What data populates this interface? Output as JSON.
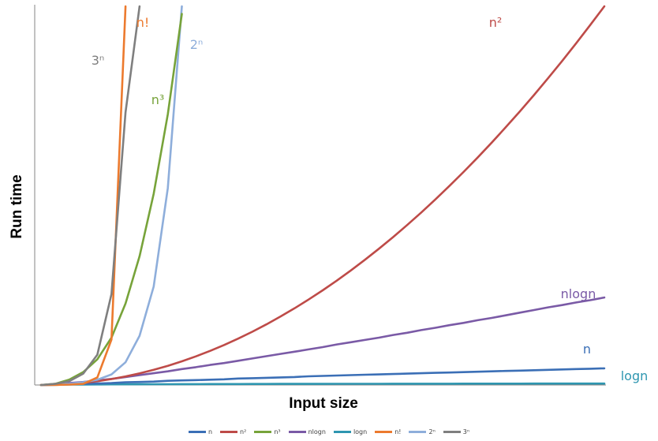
{
  "chart_data": {
    "type": "line",
    "title": "",
    "xlabel": "Input size",
    "ylabel": "Run time",
    "xlim": [
      0,
      40
    ],
    "ylim": [
      0,
      100
    ],
    "grid": false,
    "legend_position": "bottom",
    "x": [
      0,
      1,
      2,
      3,
      4,
      5,
      6,
      7,
      8,
      9,
      10,
      11,
      12,
      13,
      14,
      15,
      16,
      17,
      18,
      19,
      20,
      21,
      22,
      23,
      24,
      25,
      26,
      27,
      28,
      29,
      30,
      31,
      32,
      33,
      34,
      35,
      36,
      37,
      38,
      39,
      40
    ],
    "series": [
      {
        "name": "n",
        "label": "n",
        "color": "#3b6fb6",
        "values": [
          0,
          0.1,
          0.2,
          0.3,
          0.4,
          0.5,
          0.7,
          0.8,
          0.9,
          1.1,
          1.2,
          1.3,
          1.4,
          1.5,
          1.7,
          1.8,
          1.9,
          2.0,
          2.1,
          2.3,
          2.4,
          2.5,
          2.6,
          2.7,
          2.8,
          2.9,
          3.0,
          3.1,
          3.2,
          3.3,
          3.4,
          3.5,
          3.6,
          3.7,
          3.8,
          3.9,
          4.0,
          4.1,
          4.2,
          4.3,
          4.4
        ]
      },
      {
        "name": "n²",
        "label": "n²",
        "color": "#be4b48",
        "values": [
          0,
          0.06,
          0.25,
          0.56,
          1.0,
          1.56,
          2.25,
          3.06,
          4.0,
          5.06,
          6.25,
          7.56,
          9.0,
          10.56,
          12.25,
          14.06,
          16.0,
          18.06,
          20.25,
          22.56,
          25.0,
          27.56,
          30.25,
          33.06,
          36.0,
          39.06,
          42.25,
          45.56,
          49.0,
          52.56,
          56.25,
          60.06,
          64.0,
          68.06,
          72.25,
          76.56,
          81.0,
          85.56,
          90.25,
          95.06,
          100.0
        ]
      },
      {
        "name": "n³",
        "label": "n³",
        "color": "#77a33a",
        "values": [
          0,
          0.3,
          1.4,
          3.4,
          6.8,
          12.5,
          21.5,
          34.0,
          50.5,
          71.5,
          98.0,
          null,
          null,
          null,
          null,
          null,
          null,
          null,
          null,
          null,
          null,
          null,
          null,
          null,
          null,
          null,
          null,
          null,
          null,
          null,
          null,
          null,
          null,
          null,
          null,
          null,
          null,
          null,
          null,
          null,
          null
        ]
      },
      {
        "name": "nlogn",
        "label": "nlogn",
        "color": "#7a5aa6",
        "values": [
          0,
          0.2,
          0.5,
          0.8,
          1.2,
          1.6,
          2.1,
          2.6,
          3.1,
          3.6,
          4.2,
          4.7,
          5.3,
          5.8,
          6.4,
          7.0,
          7.6,
          8.2,
          8.8,
          9.4,
          10.0,
          10.7,
          11.3,
          11.9,
          12.5,
          13.2,
          13.8,
          14.5,
          15.1,
          15.8,
          16.4,
          17.1,
          17.7,
          18.4,
          19.1,
          19.8,
          20.5,
          21.1,
          21.8,
          22.4,
          23.1
        ]
      },
      {
        "name": "logn",
        "label": "logn",
        "color": "#2e96b0",
        "values": [
          0,
          0.05,
          0.1,
          0.12,
          0.14,
          0.16,
          0.18,
          0.19,
          0.2,
          0.21,
          0.22,
          0.23,
          0.24,
          0.25,
          0.26,
          0.27,
          0.28,
          0.29,
          0.29,
          0.3,
          0.3,
          0.31,
          0.31,
          0.32,
          0.32,
          0.33,
          0.33,
          0.34,
          0.34,
          0.34,
          0.35,
          0.35,
          0.36,
          0.36,
          0.36,
          0.37,
          0.37,
          0.37,
          0.38,
          0.38,
          0.38
        ]
      },
      {
        "name": "n!",
        "label": "n!",
        "color": "#ec7a2e",
        "values": [
          0,
          0,
          0.1,
          0.3,
          2.0,
          12.0,
          100.0,
          null,
          null,
          null,
          null,
          null,
          null,
          null,
          null,
          null,
          null,
          null,
          null,
          null,
          null,
          null,
          null,
          null,
          null,
          null,
          null,
          null,
          null,
          null,
          null,
          null,
          null,
          null,
          null,
          null,
          null,
          null,
          null,
          null,
          null
        ]
      },
      {
        "name": "2ⁿ",
        "label": "2ⁿ",
        "color": "#8eaedb",
        "values": [
          0,
          0.1,
          0.3,
          0.7,
          1.4,
          2.8,
          6.0,
          13.0,
          26.0,
          52.0,
          100.0,
          null,
          null,
          null,
          null,
          null,
          null,
          null,
          null,
          null,
          null,
          null,
          null,
          null,
          null,
          null,
          null,
          null,
          null,
          null,
          null,
          null,
          null,
          null,
          null,
          null,
          null,
          null,
          null,
          null,
          null
        ]
      },
      {
        "name": "3ⁿ",
        "label": "3ⁿ",
        "color": "#7f7f7f",
        "values": [
          0,
          0.3,
          1.0,
          3.0,
          8.0,
          24.0,
          72.0,
          100.0,
          null,
          null,
          null,
          null,
          null,
          null,
          null,
          null,
          null,
          null,
          null,
          null,
          null,
          null,
          null,
          null,
          null,
          null,
          null,
          null,
          null,
          null,
          null,
          null,
          null,
          null,
          null,
          null,
          null,
          null,
          null,
          null,
          null
        ]
      }
    ]
  }
}
